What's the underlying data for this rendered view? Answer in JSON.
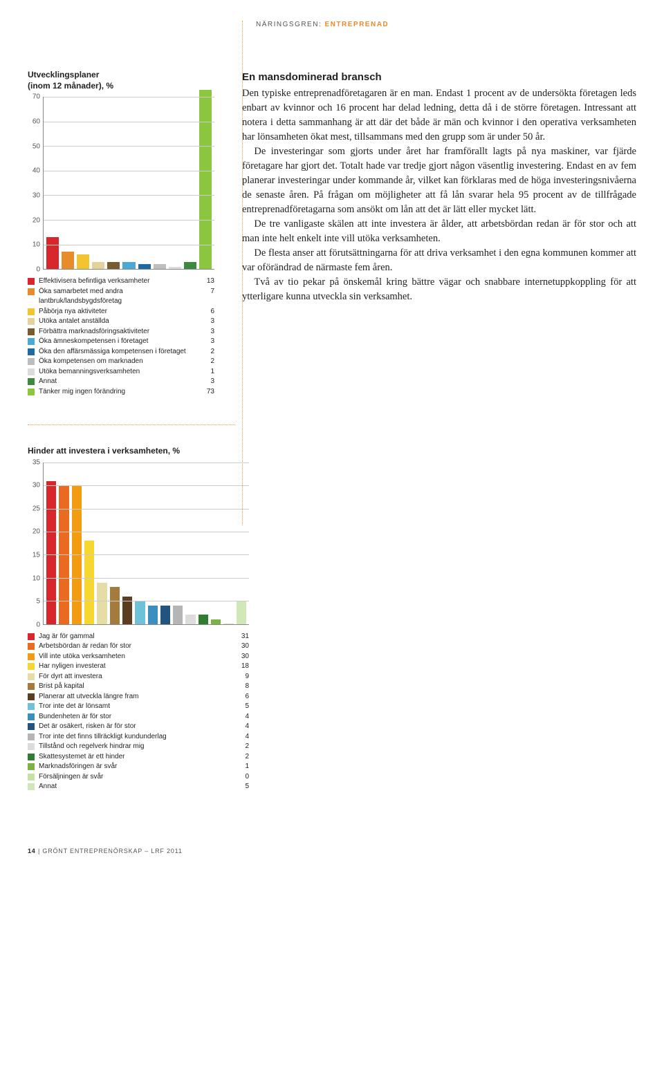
{
  "header": {
    "category_label": "NÄRINGSGREN:",
    "category_value": "ENTREPRENAD"
  },
  "chart1": {
    "type": "bar",
    "title_line1": "Utvecklingsplaner",
    "title_line2": "(inom 12 månader), %",
    "ylim": [
      0,
      70
    ],
    "ytick_step": 10,
    "background_color": "#ffffff",
    "grid_color": "#cccccc",
    "axis_color": "#888888",
    "items": [
      {
        "label": "Effektivisera befintliga verksamheter",
        "value": 13,
        "color": "#d7262c"
      },
      {
        "label": "Öka samarbetet med andra lantbruk/landsbygdsföretag",
        "value": 7,
        "color": "#e88b2b"
      },
      {
        "label": "Påbörja nya aktiviteter",
        "value": 6,
        "color": "#f4c430"
      },
      {
        "label": "Utöka antalet anställda",
        "value": 3,
        "color": "#e3d39a"
      },
      {
        "label": "Förbättra marknadsföringsaktiviteter",
        "value": 3,
        "color": "#7a5a2f"
      },
      {
        "label": "Öka ämneskompetensen i företaget",
        "value": 3,
        "color": "#4aa9d6"
      },
      {
        "label": "Öka den affärsmässiga kompetensen i företaget",
        "value": 2,
        "color": "#1f6aa5"
      },
      {
        "label": "Öka kompetensen om marknaden",
        "value": 2,
        "color": "#bdbdbd"
      },
      {
        "label": "Utöka bemanningsverksamheten",
        "value": 1,
        "color": "#dcdcdc"
      },
      {
        "label": "Annat",
        "value": 3,
        "color": "#3c8a3c"
      },
      {
        "label": "Tänker mig ingen förändring",
        "value": 73,
        "color": "#8cc63f"
      }
    ]
  },
  "article": {
    "heading": "En mansdominerad bransch",
    "p1": "Den typiske entreprenadföretagaren är en man. Endast 1 procent av de undersökta företagen leds enbart av kvinnor och 16 procent har delad ledning, detta då i de större företagen. Intressant att notera i detta sammanhang är att där det både är män och kvinnor i den operativa verksamheten har lönsamheten ökat mest, tillsammans med den grupp som är under 50 år.",
    "p2": "De investeringar som gjorts under året har framförallt lagts på nya maskiner, var fjärde företagare har gjort det. Totalt hade var tredje gjort någon väsentlig investering. Endast en av fem planerar investeringar under kommande år, vilket kan förklaras med de höga investeringsnivåerna de senaste åren. På frågan om möjligheter att få lån svarar hela 95 procent av de tillfrågade entreprenadföretagarna som ansökt om lån att det är lätt eller mycket lätt.",
    "p3": "De tre vanligaste skälen att inte investera är ålder, att arbetsbördan redan är för stor och att man inte helt enkelt inte vill utöka verksamheten.",
    "p4": "De flesta anser att förutsättningarna för att driva verksamhet i den egna kommunen kommer att var oförändrad de närmaste fem åren.",
    "p5": "Två av tio pekar på önskemål kring bättre vägar och snabbare internetuppkoppling för att ytterligare kunna utveckla sin verksamhet."
  },
  "chart2": {
    "type": "bar",
    "title": "Hinder att investera i verksamheten, %",
    "ylim": [
      0,
      35
    ],
    "ytick_step": 5,
    "background_color": "#ffffff",
    "grid_color": "#cccccc",
    "axis_color": "#888888",
    "items": [
      {
        "label": "Jag är för gammal",
        "value": 31,
        "color": "#d7262c"
      },
      {
        "label": "Arbetsbördan är redan för stor",
        "value": 30,
        "color": "#ea6a20"
      },
      {
        "label": "Vill inte utöka verksamheten",
        "value": 30,
        "color": "#f39c12"
      },
      {
        "label": "Har nyligen investerat",
        "value": 18,
        "color": "#f6d731"
      },
      {
        "label": "För dyrt att investera",
        "value": 9,
        "color": "#e6dca5"
      },
      {
        "label": "Brist på kapital",
        "value": 8,
        "color": "#a47a3d"
      },
      {
        "label": "Planerar att utveckla längre fram",
        "value": 6,
        "color": "#5a3e1f"
      },
      {
        "label": "Tror inte det är lönsamt",
        "value": 5,
        "color": "#6fc1d8"
      },
      {
        "label": "Bundenheten är för stor",
        "value": 4,
        "color": "#3a8fbf"
      },
      {
        "label": "Det är osäkert, risken är för stor",
        "value": 4,
        "color": "#23537f"
      },
      {
        "label": "Tror inte det finns tillräckligt kundunderlag",
        "value": 4,
        "color": "#b5b5b5"
      },
      {
        "label": "Tillstånd och regelverk hindrar mig",
        "value": 2,
        "color": "#dcdcdc"
      },
      {
        "label": "Skattesystemet är ett hinder",
        "value": 2,
        "color": "#2e7d32"
      },
      {
        "label": "Marknadsföringen är svår",
        "value": 1,
        "color": "#7cb342"
      },
      {
        "label": "Försäljningen är svår",
        "value": 0,
        "color": "#c5e1a5"
      },
      {
        "label": "Annat",
        "value": 5,
        "color": "#d0e8b8"
      }
    ]
  },
  "footer": {
    "page_number": "14",
    "book_title": "GRÖNT ENTREPRENÖRSKAP – LRF 2011"
  }
}
